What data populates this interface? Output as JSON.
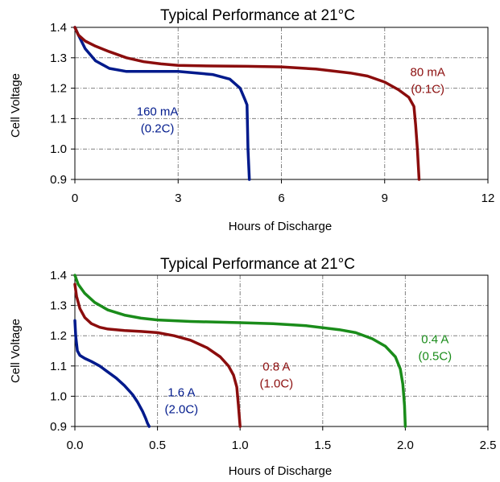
{
  "chart_data": [
    {
      "type": "line",
      "title": "Typical Performance at 21°C",
      "xlabel": "Hours of Discharge",
      "ylabel": "Cell Voltage",
      "xlim": [
        0,
        12
      ],
      "ylim": [
        0.9,
        1.4
      ],
      "xticks": [
        0,
        3,
        6,
        9,
        12
      ],
      "xtick_labels": [
        "0",
        "3",
        "6",
        "9",
        "12"
      ],
      "yticks": [
        0.9,
        1.0,
        1.1,
        1.2,
        1.3,
        1.4
      ],
      "ytick_labels": [
        "0.9",
        "1.0",
        "1.1",
        "1.2",
        "1.3",
        "1.4"
      ],
      "grid": true,
      "series": [
        {
          "name": "160 mA",
          "label_lines": [
            "160 mA",
            "(0.2C)"
          ],
          "label_at": [
            2.4,
            1.11
          ],
          "color": "#001a8c",
          "x": [
            0,
            0.1,
            0.3,
            0.6,
            1.0,
            1.5,
            2.0,
            3.0,
            4.0,
            4.5,
            4.8,
            4.95,
            5.0,
            5.03,
            5.07
          ],
          "y": [
            1.4,
            1.375,
            1.33,
            1.29,
            1.265,
            1.255,
            1.255,
            1.255,
            1.245,
            1.23,
            1.2,
            1.16,
            1.145,
            1.0,
            0.9
          ]
        },
        {
          "name": "80 mA",
          "label_lines": [
            "80 mA",
            "(0.1C)"
          ],
          "label_at": [
            10.25,
            1.24
          ],
          "color": "#8b0d0d",
          "x": [
            0,
            0.1,
            0.3,
            0.6,
            1.0,
            1.5,
            2.0,
            2.5,
            3.0,
            4.0,
            5.0,
            6.0,
            7.0,
            8.0,
            8.5,
            9.0,
            9.4,
            9.7,
            9.85,
            9.9,
            9.95,
            10.0
          ],
          "y": [
            1.4,
            1.375,
            1.355,
            1.338,
            1.32,
            1.3,
            1.287,
            1.28,
            1.275,
            1.273,
            1.272,
            1.27,
            1.263,
            1.25,
            1.24,
            1.22,
            1.195,
            1.17,
            1.14,
            1.08,
            1.0,
            0.9
          ]
        }
      ]
    },
    {
      "type": "line",
      "title": "Typical Performance at 21°C",
      "xlabel": "Hours of Discharge",
      "ylabel": "Cell Voltage",
      "xlim": [
        0,
        2.5
      ],
      "ylim": [
        0.9,
        1.4
      ],
      "xticks": [
        0,
        0.5,
        1.0,
        1.5,
        2.0,
        2.5
      ],
      "xtick_labels": [
        "0.0",
        "0.5",
        "1.0",
        "1.5",
        "2.0",
        "2.5"
      ],
      "yticks": [
        0.9,
        1.0,
        1.1,
        1.2,
        1.3,
        1.4
      ],
      "ytick_labels": [
        "0.9",
        "1.0",
        "1.1",
        "1.2",
        "1.3",
        "1.4"
      ],
      "grid": true,
      "series": [
        {
          "name": "1.6 A",
          "label_lines": [
            "1.6 A",
            "(2.0C)"
          ],
          "label_at": [
            0.645,
            1.0
          ],
          "color": "#001a8c",
          "x": [
            0,
            0.005,
            0.015,
            0.03,
            0.06,
            0.1,
            0.15,
            0.2,
            0.25,
            0.3,
            0.35,
            0.38,
            0.41,
            0.43,
            0.44,
            0.45
          ],
          "y": [
            1.25,
            1.2,
            1.15,
            1.135,
            1.125,
            1.115,
            1.1,
            1.08,
            1.06,
            1.035,
            1.005,
            0.98,
            0.95,
            0.925,
            0.91,
            0.9
          ]
        },
        {
          "name": "0.8 A",
          "label_lines": [
            "0.8 A",
            "(1.0C)"
          ],
          "label_at": [
            1.22,
            1.085
          ],
          "color": "#8b0d0d",
          "x": [
            0,
            0.01,
            0.03,
            0.06,
            0.1,
            0.15,
            0.2,
            0.3,
            0.4,
            0.5,
            0.6,
            0.7,
            0.8,
            0.88,
            0.93,
            0.96,
            0.98,
            0.99,
            1.0
          ],
          "y": [
            1.37,
            1.33,
            1.29,
            1.26,
            1.24,
            1.228,
            1.222,
            1.217,
            1.214,
            1.21,
            1.2,
            1.185,
            1.16,
            1.13,
            1.1,
            1.07,
            1.03,
            0.97,
            0.9
          ]
        },
        {
          "name": "0.4 A",
          "label_lines": [
            "0.4 A",
            "(0.5C)"
          ],
          "label_at": [
            2.18,
            1.175
          ],
          "color": "#1a8c1a",
          "x": [
            0,
            0.02,
            0.06,
            0.12,
            0.2,
            0.3,
            0.4,
            0.5,
            0.7,
            1.0,
            1.2,
            1.4,
            1.6,
            1.7,
            1.8,
            1.88,
            1.94,
            1.97,
            1.985,
            1.995,
            2.0
          ],
          "y": [
            1.4,
            1.37,
            1.34,
            1.31,
            1.285,
            1.268,
            1.258,
            1.252,
            1.247,
            1.243,
            1.24,
            1.233,
            1.22,
            1.21,
            1.19,
            1.165,
            1.13,
            1.09,
            1.04,
            0.97,
            0.9
          ]
        }
      ]
    }
  ]
}
